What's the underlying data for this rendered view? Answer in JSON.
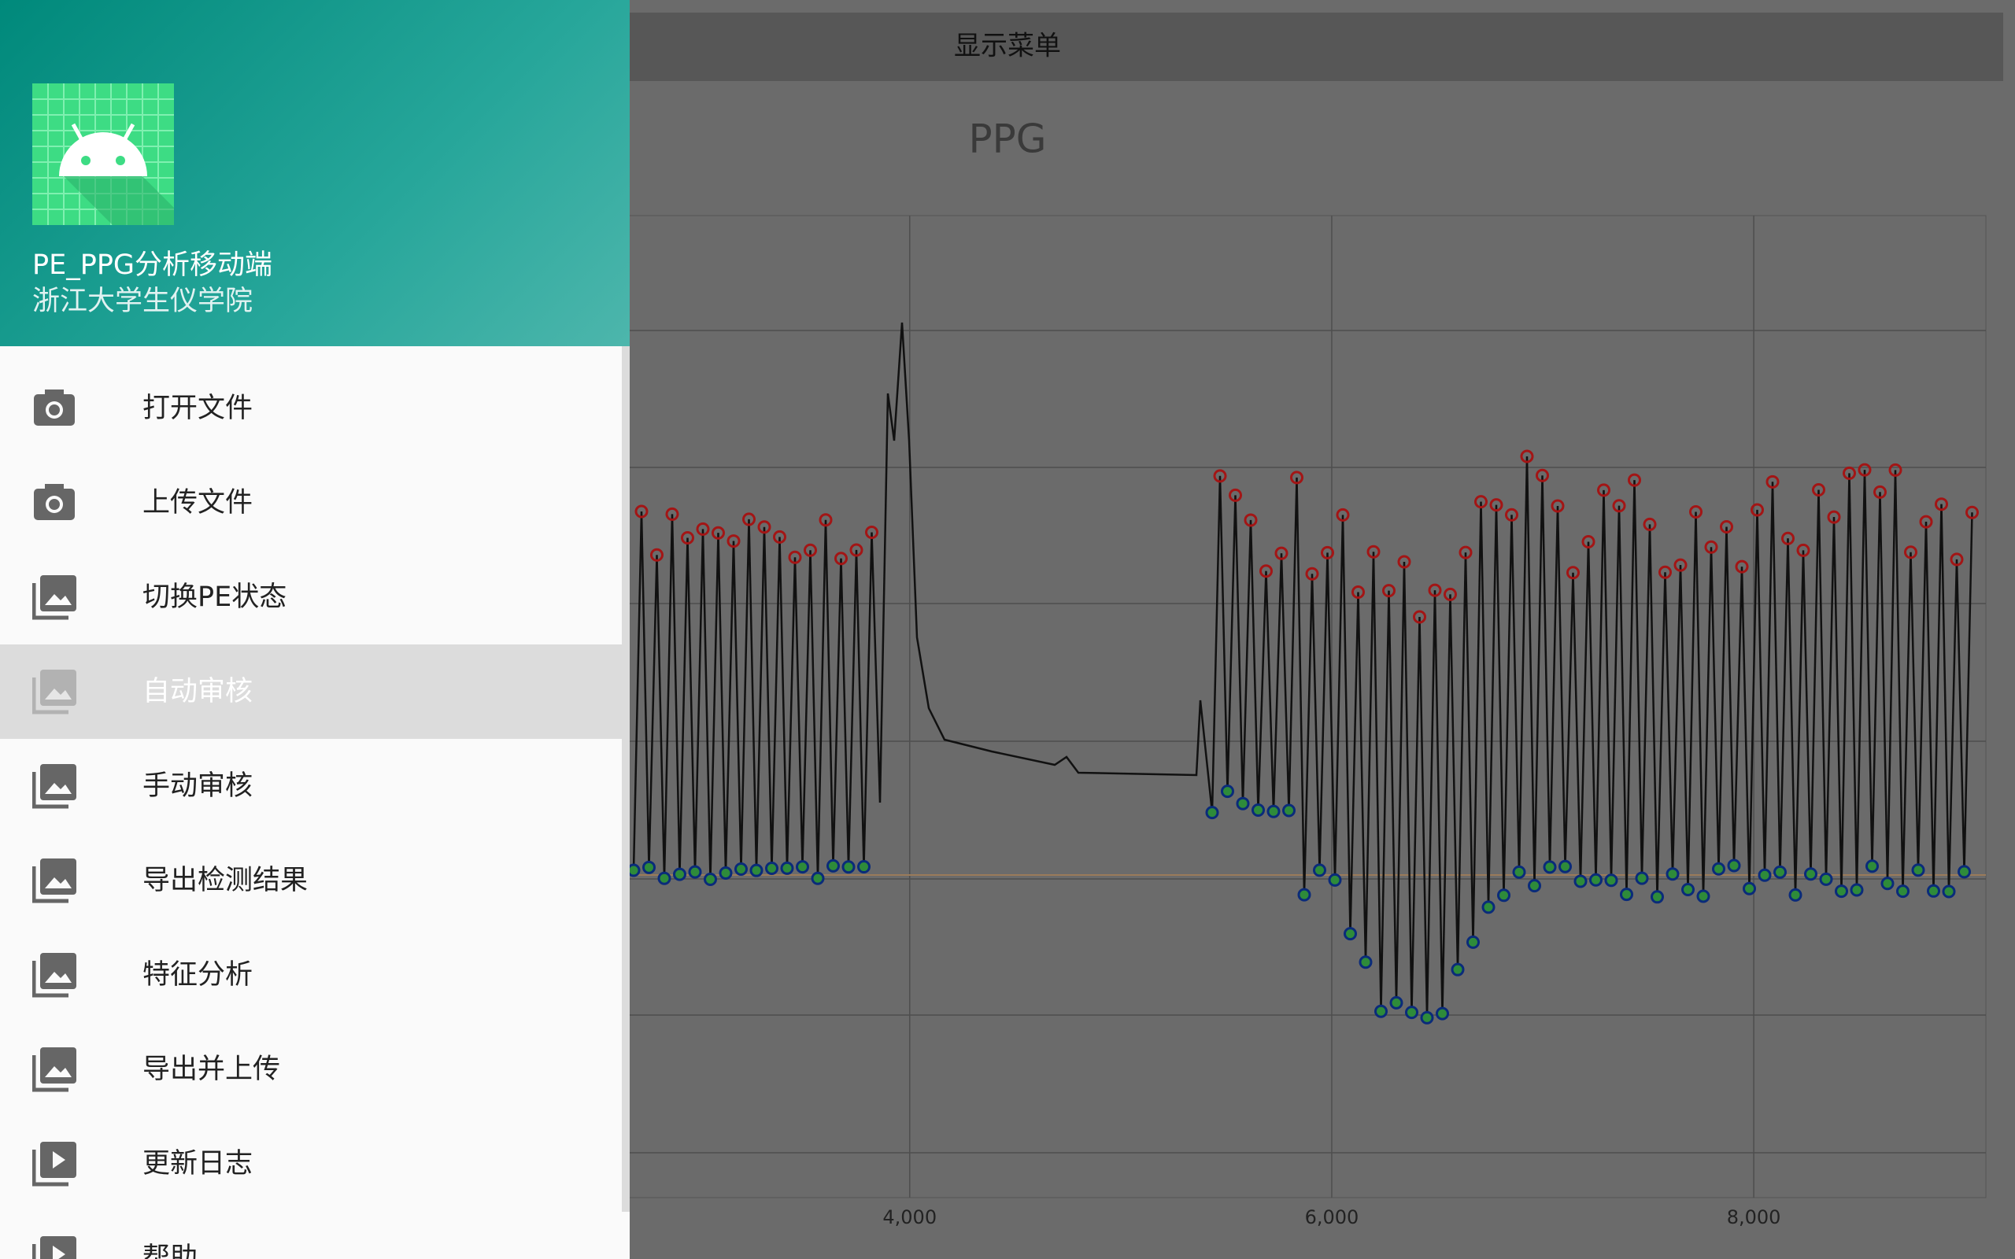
{
  "app_bar": {
    "button": "显示菜单"
  },
  "chart": {
    "title": "PPG",
    "xlim": [
      2300,
      9100
    ],
    "xticks": [
      {
        "value": 4000,
        "label": "4,000"
      },
      {
        "value": 6000,
        "label": "6,000"
      },
      {
        "value": 8000,
        "label": "8,000"
      }
    ]
  },
  "drawer": {
    "header": {
      "title": "PE_PPG分析移动端",
      "subtitle": "浙江大学生仪学院"
    },
    "selected": 3,
    "items": [
      "打开文件",
      "上传文件",
      "切换PE状态",
      "自动审核",
      "手动审核",
      "导出检测结果",
      "特征分析",
      "导出并上传",
      "更新日志",
      "帮助"
    ]
  }
}
